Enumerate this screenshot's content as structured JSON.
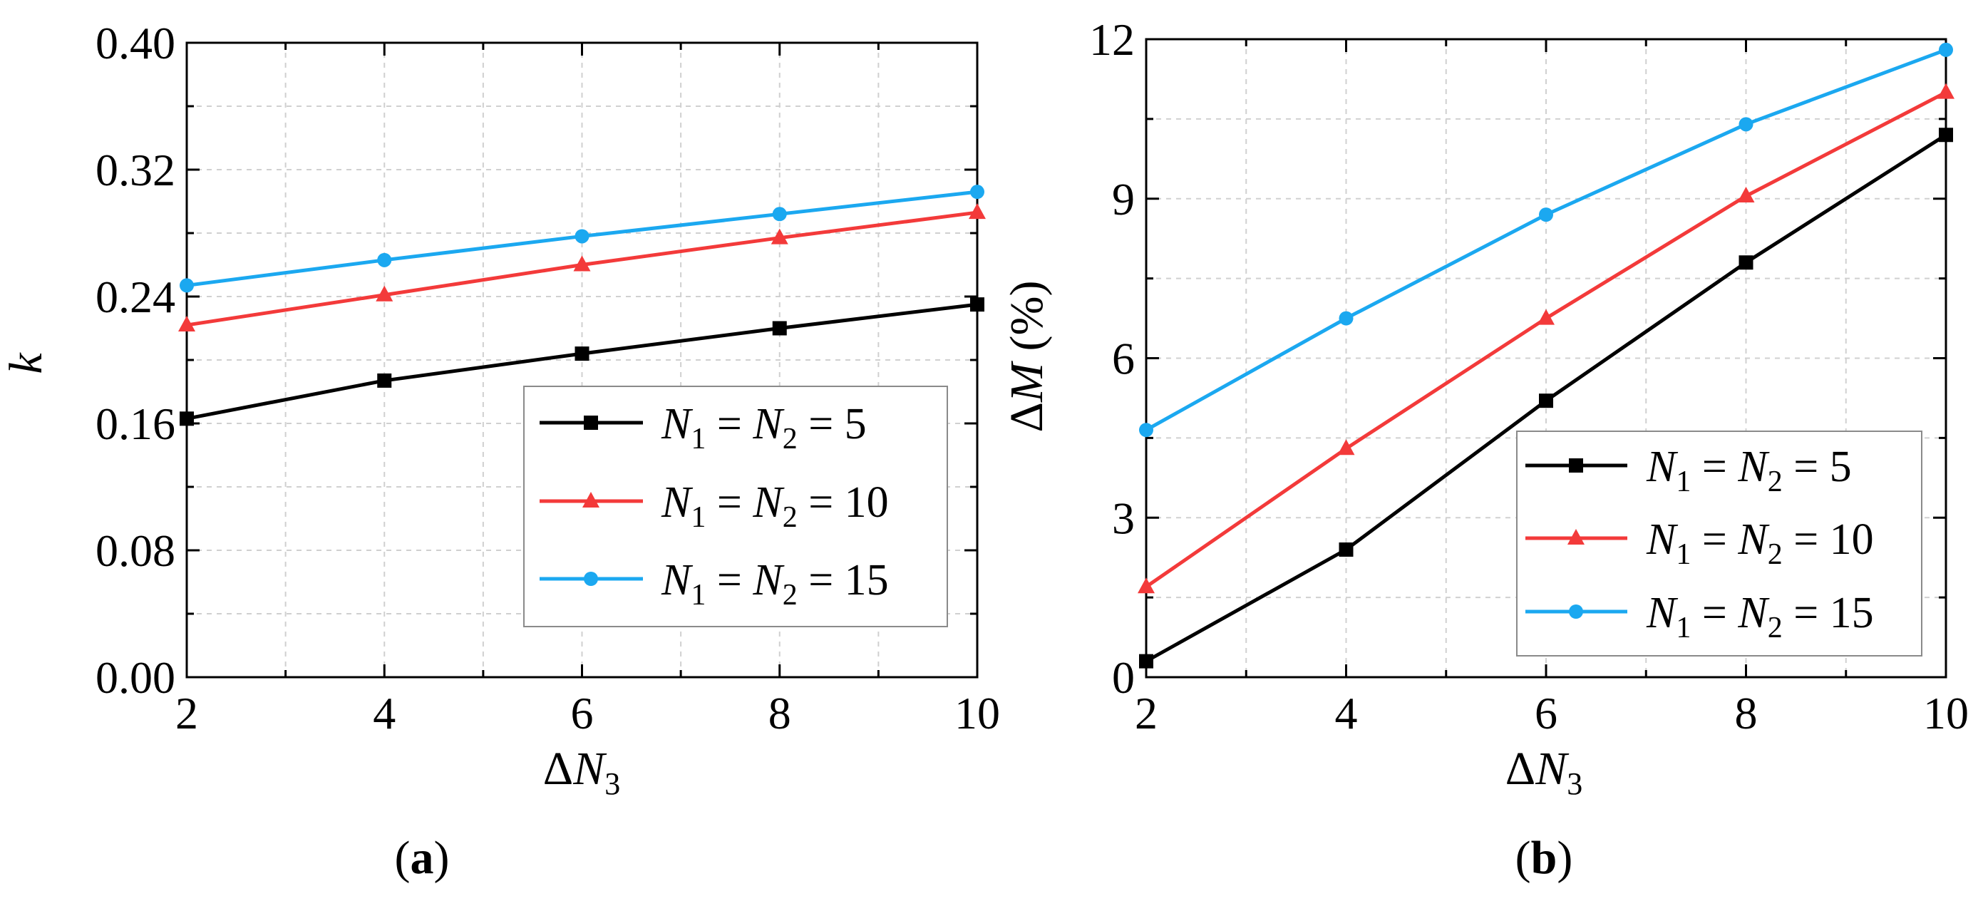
{
  "colors": {
    "series_black": "#000000",
    "series_red": "#f33a3a",
    "series_blue": "#1ba8f0"
  },
  "legend_text": {
    "n1": "N",
    "n2": "N",
    "sub1": "1",
    "sub2": "2",
    "eq": " = ",
    "values": [
      "5",
      "10",
      "15"
    ]
  },
  "chart_data": [
    {
      "type": "line",
      "panel": "a",
      "caption_open": "(",
      "caption_letter": "a",
      "caption_close": ")",
      "xlabel_delta": "Δ",
      "xlabel_var": "N",
      "xlabel_sub": "3",
      "ylabel": "k",
      "x": [
        2,
        4,
        6,
        8,
        10
      ],
      "xlim": [
        2,
        10
      ],
      "ylim": [
        0,
        0.4
      ],
      "xticks": [
        "2",
        "4",
        "6",
        "8",
        "10"
      ],
      "yticks": [
        "0.00",
        "0.08",
        "0.16",
        "0.24",
        "0.32",
        "0.40"
      ],
      "grid": true,
      "legend_position": "lower-right",
      "series": [
        {
          "name": "N1 = N2 = 5",
          "color": "#000000",
          "marker": "square",
          "values": [
            0.163,
            0.187,
            0.204,
            0.22,
            0.235
          ]
        },
        {
          "name": "N1 = N2 = 10",
          "color": "#f33a3a",
          "marker": "triangle",
          "values": [
            0.222,
            0.241,
            0.26,
            0.277,
            0.293
          ]
        },
        {
          "name": "N1 = N2 = 15",
          "color": "#1ba8f0",
          "marker": "circle",
          "values": [
            0.247,
            0.263,
            0.278,
            0.292,
            0.306
          ]
        }
      ]
    },
    {
      "type": "line",
      "panel": "b",
      "caption_open": "(",
      "caption_letter": "b",
      "caption_close": ")",
      "xlabel_delta": "Δ",
      "xlabel_var": "N",
      "xlabel_sub": "3",
      "ylabel_delta": "Δ",
      "ylabel_var": "M",
      "ylabel_unit": " (%)",
      "x": [
        2,
        4,
        6,
        8,
        10
      ],
      "xlim": [
        2,
        10
      ],
      "ylim": [
        0,
        12
      ],
      "xticks": [
        "2",
        "4",
        "6",
        "8",
        "10"
      ],
      "yticks": [
        "0",
        "3",
        "6",
        "9",
        "12"
      ],
      "grid": true,
      "legend_position": "lower-right",
      "series": [
        {
          "name": "N1 = N2 = 5",
          "color": "#000000",
          "marker": "square",
          "values": [
            0.3,
            2.4,
            5.2,
            7.8,
            10.2
          ]
        },
        {
          "name": "N1 = N2 = 10",
          "color": "#f33a3a",
          "marker": "triangle",
          "values": [
            1.7,
            4.3,
            6.75,
            9.05,
            11.0
          ]
        },
        {
          "name": "N1 = N2 = 15",
          "color": "#1ba8f0",
          "marker": "circle",
          "values": [
            4.65,
            6.75,
            8.7,
            10.4,
            11.8
          ]
        }
      ]
    }
  ]
}
